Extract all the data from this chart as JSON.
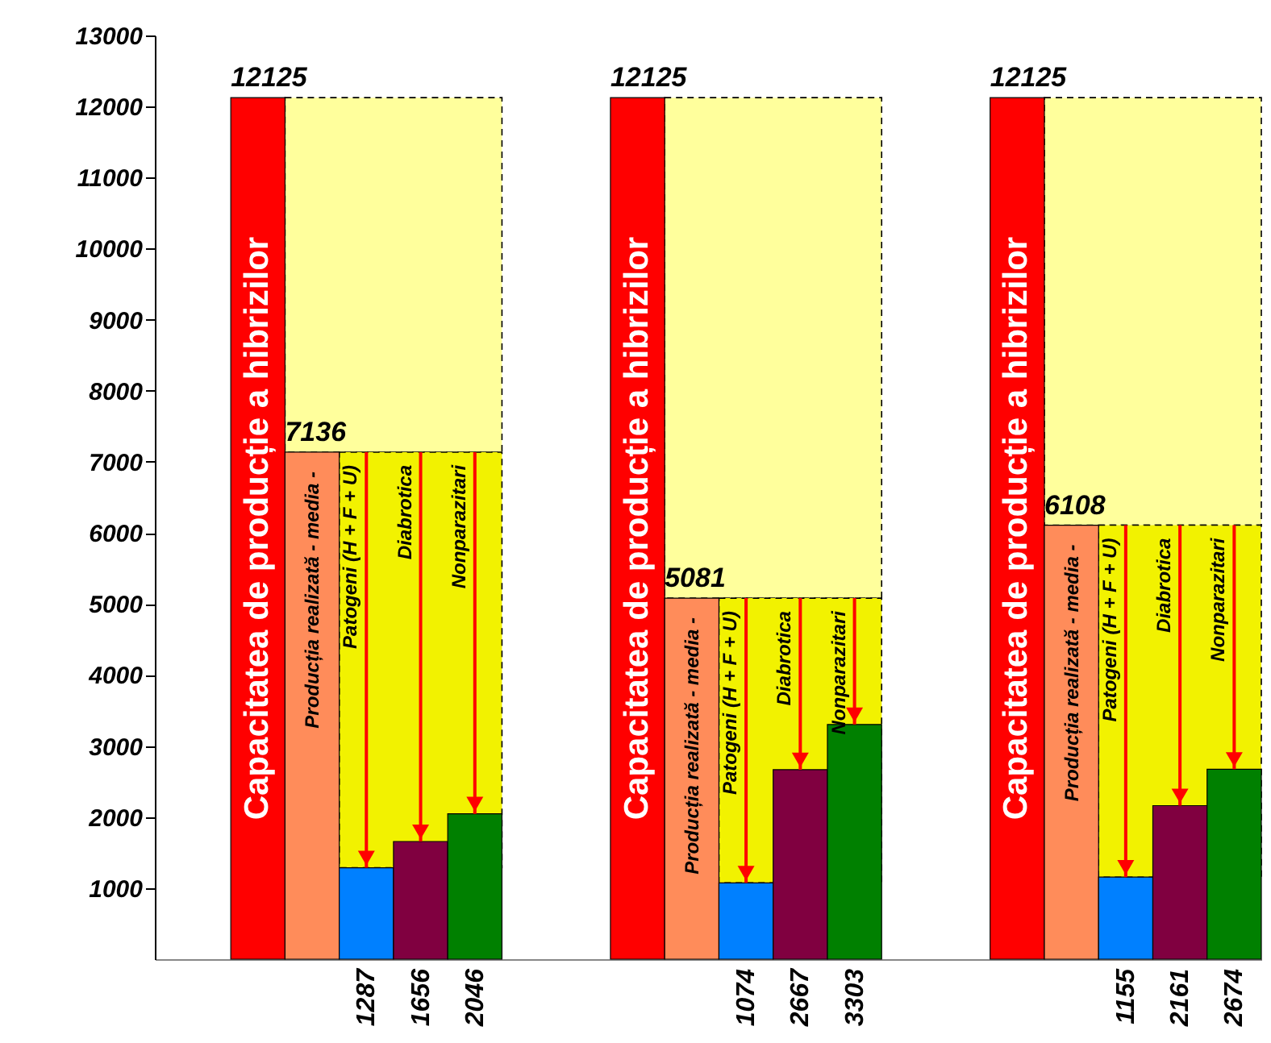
{
  "chart_data": {
    "type": "bar",
    "categories": [
      null,
      null,
      null
    ],
    "series": [
      {
        "name": "Capacitatea de producție a hibrizilor",
        "color": "#ff0000",
        "values": [
          12125,
          12125,
          12125
        ]
      },
      {
        "name": "Producția realizată - media -",
        "color": "#ff8c5a",
        "values": [
          7136,
          5081,
          6108
        ]
      },
      {
        "name": "Patogeni (H + F + U)",
        "color": "#0080ff",
        "values": [
          1287,
          1074,
          1155
        ]
      },
      {
        "name": "Diabrotica",
        "color": "#800040",
        "values": [
          1656,
          2667,
          2161
        ]
      },
      {
        "name": "Nonparazitari",
        "color": "#008000",
        "values": [
          2046,
          3303,
          2674
        ]
      }
    ],
    "data_labels": true,
    "ylim": [
      0,
      13000
    ],
    "yticks": [
      1000,
      2000,
      3000,
      4000,
      5000,
      6000,
      7000,
      8000,
      9000,
      10000,
      11000,
      12000,
      13000
    ],
    "tick_labels": "y"
  }
}
